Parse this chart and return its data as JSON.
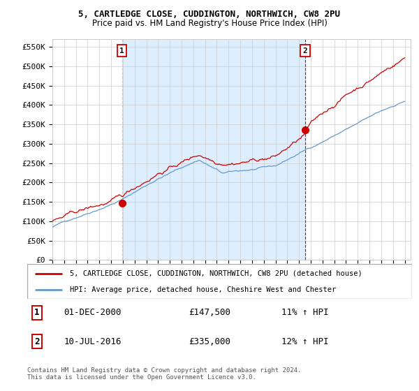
{
  "title1": "5, CARTLEDGE CLOSE, CUDDINGTON, NORTHWICH, CW8 2PU",
  "title2": "Price paid vs. HM Land Registry's House Price Index (HPI)",
  "ylabel_ticks": [
    "£0",
    "£50K",
    "£100K",
    "£150K",
    "£200K",
    "£250K",
    "£300K",
    "£350K",
    "£400K",
    "£450K",
    "£500K",
    "£550K"
  ],
  "ytick_values": [
    0,
    50000,
    100000,
    150000,
    200000,
    250000,
    300000,
    350000,
    400000,
    450000,
    500000,
    550000
  ],
  "ylim": [
    0,
    570000
  ],
  "legend_line1": "5, CARTLEDGE CLOSE, CUDDINGTON, NORTHWICH, CW8 2PU (detached house)",
  "legend_line2": "HPI: Average price, detached house, Cheshire West and Chester",
  "sale1_label": "1",
  "sale1_date": "01-DEC-2000",
  "sale1_price": "£147,500",
  "sale1_hpi": "11% ↑ HPI",
  "sale2_label": "2",
  "sale2_date": "10-JUL-2016",
  "sale2_price": "£335,000",
  "sale2_hpi": "12% ↑ HPI",
  "footnote1": "Contains HM Land Registry data © Crown copyright and database right 2024.",
  "footnote2": "This data is licensed under the Open Government Licence v3.0.",
  "red_color": "#cc0000",
  "blue_color": "#6699cc",
  "shade_color": "#ddeeff",
  "marker1_x": 2000.92,
  "marker1_y": 147500,
  "marker2_x": 2016.53,
  "marker2_y": 335000,
  "vline1_x": 2000.92,
  "vline2_x": 2016.53,
  "xmin": 1995,
  "xmax": 2025.5,
  "background_color": "#ffffff",
  "grid_color": "#cccccc",
  "grid_color_major": "#bbbbbb"
}
